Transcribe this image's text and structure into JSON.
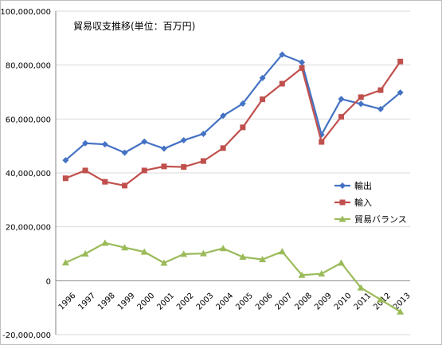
{
  "chart_data": {
    "type": "line",
    "title": "貿易収支推移(単位：百万円)",
    "xlabel": "",
    "ylabel": "",
    "categories": [
      "1996",
      "1997",
      "1998",
      "1999",
      "2000",
      "2001",
      "2002",
      "2003",
      "2004",
      "2005",
      "2006",
      "2007",
      "2008",
      "2009",
      "2010",
      "2011",
      "2012",
      "2013"
    ],
    "ylim": [
      -20000000,
      100000000
    ],
    "yticks": [
      -20000000,
      0,
      20000000,
      40000000,
      60000000,
      80000000,
      100000000
    ],
    "ytick_labels": [
      "-20,000,000",
      "0",
      "20,000,000",
      "40,000,000",
      "60,000,000",
      "80,000,000",
      "100,000,000"
    ],
    "grid": "horizontal",
    "legend_position": "right",
    "series": [
      {
        "name": "輸出",
        "color": "#4472C4",
        "marker": "diamond",
        "values": [
          44700000,
          51000000,
          50600000,
          47500000,
          51600000,
          49000000,
          52100000,
          54500000,
          61200000,
          65700000,
          75200000,
          83900000,
          81000000,
          54200000,
          67400000,
          65600000,
          63700000,
          69800000
        ]
      },
      {
        "name": "輸入",
        "color": "#C0504D",
        "marker": "square",
        "values": [
          38000000,
          40900000,
          36700000,
          35300000,
          40900000,
          42400000,
          42200000,
          44400000,
          49200000,
          56900000,
          67300000,
          73100000,
          78900000,
          51500000,
          60800000,
          68100000,
          70700000,
          81300000
        ]
      },
      {
        "name": "貿易バランス",
        "color": "#9BBB59",
        "marker": "triangle",
        "values": [
          6700000,
          10000000,
          14000000,
          12300000,
          10700000,
          6600000,
          9900000,
          10100000,
          12000000,
          8800000,
          7900000,
          10800000,
          2100000,
          2600000,
          6600000,
          -2600000,
          -7000000,
          -11500000
        ]
      }
    ]
  }
}
